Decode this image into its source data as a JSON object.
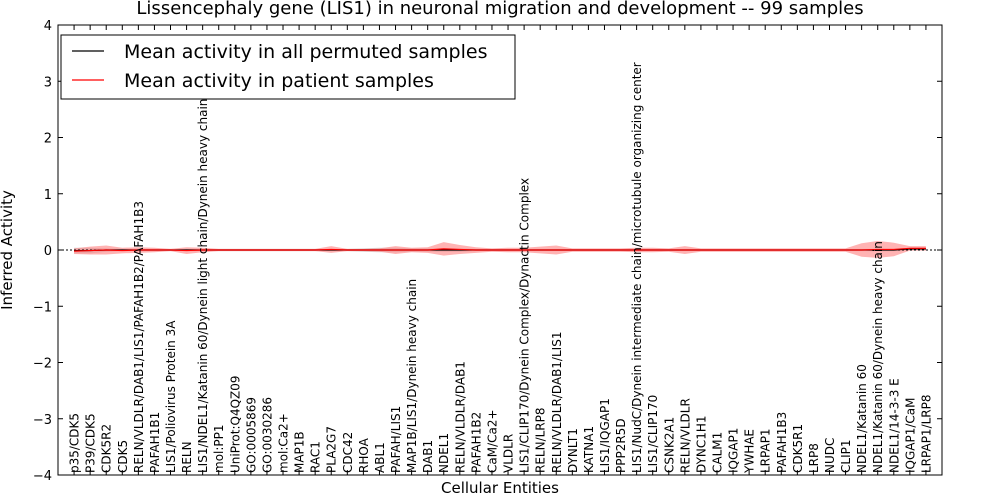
{
  "chart_data": {
    "type": "line",
    "title": "Lissencephaly gene (LIS1) in neuronal migration and development -- 99 samples",
    "xlabel": "Cellular Entities",
    "ylabel": "Inferred Activity",
    "ylim": [
      -4,
      4
    ],
    "yticks": [
      -4,
      -3,
      -2,
      -1,
      0,
      1,
      2,
      3,
      4
    ],
    "ytick_labels": [
      "−4",
      "−3",
      "−2",
      "−1",
      "0",
      "1",
      "2",
      "3",
      "4"
    ],
    "legend_position": "top-left",
    "categories": [
      "p35/CDK5",
      "P39/CDK5",
      "CDK5R2",
      "CDK5",
      "RELN/VLDLR/DAB1/LIS1/PAFAH1B2/PAFAH1B3",
      "PAFAH1B1",
      "LIS1/Poliovirus Protein 3A",
      "RELN",
      "LIS1/NDEL1/Katanin 60/Dynein light chain/Dynein heavy chain",
      "mol:PP1",
      "UniProt:Q4QZ09",
      "GO:0005869",
      "GO:0030286",
      "mol:Ca2+",
      "MAP1B",
      "RAC1",
      "PLA2G7",
      "CDC42",
      "RHOA",
      "ABL1",
      "PAFAH/LIS1",
      "MAP1B/LIS1/Dynein heavy chain",
      "DAB1",
      "NDEL1",
      "RELN/VLDLR/DAB1",
      "PAFAH1B2",
      "CaM/Ca2+",
      "VLDLR",
      "LIS1/CLIP170/Dynein Complex/Dynactin Complex",
      "RELN/LRP8",
      "RELN/VLDLR/DAB1/LIS1",
      "DYNLT1",
      "KATNA1",
      "LIS1/IQGAP1",
      "PPP2R5D",
      "LIS1/NudC/Dynein intermediate chain/microtubule organizing center",
      "LIS1/CLIP170",
      "CSNK2A1",
      "RELN/VLDLR",
      "DYNC1H1",
      "CALM1",
      "IQGAP1",
      "YWHAE",
      "LRPAP1",
      "PAFAH1B3",
      "CDK5R1",
      "LRP8",
      "NUDC",
      "CLIP1",
      "NDEL1/Katanin 60",
      "NDEL1/Katanin 60/Dynein heavy chain",
      "NDEL1/14-3-3 E",
      "IQGAP1/CaM",
      "LRPAP1/LRP8"
    ],
    "series": [
      {
        "name": "Mean activity in all permuted samples",
        "color": "#000000",
        "band_color": "#b0b0b0",
        "values": [
          -0.01,
          -0.01,
          0.0,
          0.0,
          0.0,
          0.0,
          0.0,
          0.0,
          0.0,
          0.0,
          0.0,
          0.0,
          0.0,
          0.0,
          0.0,
          0.0,
          0.0,
          0.0,
          0.0,
          0.0,
          0.0,
          0.0,
          0.0,
          0.0,
          0.0,
          0.0,
          0.0,
          0.0,
          0.0,
          0.0,
          0.0,
          0.0,
          0.0,
          0.0,
          0.0,
          0.0,
          0.0,
          0.0,
          0.0,
          0.0,
          0.0,
          0.0,
          0.0,
          0.0,
          0.0,
          0.0,
          0.0,
          0.0,
          0.0,
          0.0,
          0.0,
          0.0,
          0.02,
          0.02
        ],
        "band": [
          0.05,
          0.05,
          0.03,
          0.02,
          0.02,
          0.02,
          0.02,
          0.02,
          0.02,
          0.02,
          0.02,
          0.02,
          0.02,
          0.02,
          0.02,
          0.02,
          0.02,
          0.02,
          0.03,
          0.04,
          0.04,
          0.03,
          0.03,
          0.03,
          0.03,
          0.02,
          0.02,
          0.02,
          0.02,
          0.02,
          0.02,
          0.02,
          0.02,
          0.02,
          0.02,
          0.02,
          0.02,
          0.02,
          0.02,
          0.02,
          0.02,
          0.02,
          0.02,
          0.02,
          0.02,
          0.02,
          0.02,
          0.02,
          0.02,
          0.02,
          0.02,
          0.02,
          0.02,
          0.02
        ]
      },
      {
        "name": "Mean activity in patient samples",
        "color": "#ff0000",
        "band_color": "#ff8080",
        "values": [
          -0.02,
          -0.01,
          0.0,
          -0.01,
          0.0,
          0.0,
          0.0,
          -0.01,
          0.0,
          0.0,
          0.0,
          0.0,
          0.0,
          0.0,
          0.0,
          0.0,
          0.01,
          0.0,
          0.0,
          0.0,
          0.0,
          0.0,
          0.0,
          0.02,
          0.01,
          0.0,
          0.0,
          0.0,
          0.0,
          0.0,
          0.0,
          0.0,
          0.0,
          0.0,
          0.0,
          0.0,
          0.0,
          0.0,
          0.0,
          0.0,
          0.0,
          0.0,
          0.0,
          0.0,
          0.0,
          0.0,
          0.0,
          0.0,
          0.0,
          0.0,
          0.01,
          0.01,
          0.03,
          0.03
        ],
        "band": [
          0.05,
          0.07,
          0.08,
          0.05,
          0.05,
          0.04,
          0.02,
          0.06,
          0.04,
          0.02,
          0.02,
          0.02,
          0.02,
          0.02,
          0.02,
          0.02,
          0.06,
          0.02,
          0.02,
          0.03,
          0.07,
          0.04,
          0.05,
          0.12,
          0.08,
          0.05,
          0.03,
          0.04,
          0.04,
          0.06,
          0.08,
          0.03,
          0.03,
          0.03,
          0.03,
          0.04,
          0.04,
          0.03,
          0.07,
          0.03,
          0.03,
          0.03,
          0.03,
          0.03,
          0.03,
          0.03,
          0.03,
          0.03,
          0.03,
          0.12,
          0.15,
          0.12,
          0.04,
          0.04
        ]
      }
    ],
    "reference_line": 0
  }
}
